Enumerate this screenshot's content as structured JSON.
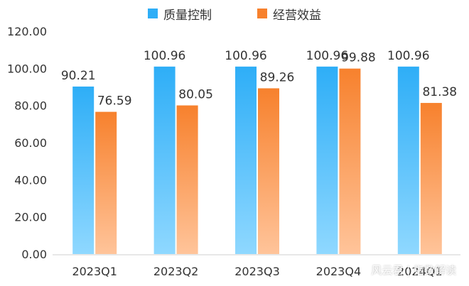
{
  "chart_data": {
    "type": "bar",
    "categories": [
      "2023Q1",
      "2023Q2",
      "2023Q3",
      "2023Q4",
      "2024Q1"
    ],
    "series": [
      {
        "name": "质量控制",
        "values": [
          90.21,
          100.96,
          100.96,
          100.96,
          100.96
        ],
        "color_top": "#2eaef7",
        "color_bottom": "#8fd8ff"
      },
      {
        "name": "经营效益",
        "values": [
          76.59,
          80.05,
          89.26,
          99.88,
          81.38
        ],
        "color_top": "#f7812d",
        "color_bottom": "#ffc49a"
      }
    ],
    "ylim": [
      0,
      120
    ],
    "yticks": [
      "0.00",
      "20.00",
      "40.00",
      "60.00",
      "80.00",
      "100.00",
      "120.00"
    ],
    "legend_position": "top-center",
    "grid": false,
    "data_labels": true
  },
  "watermark": "风云君 | 指数解读"
}
